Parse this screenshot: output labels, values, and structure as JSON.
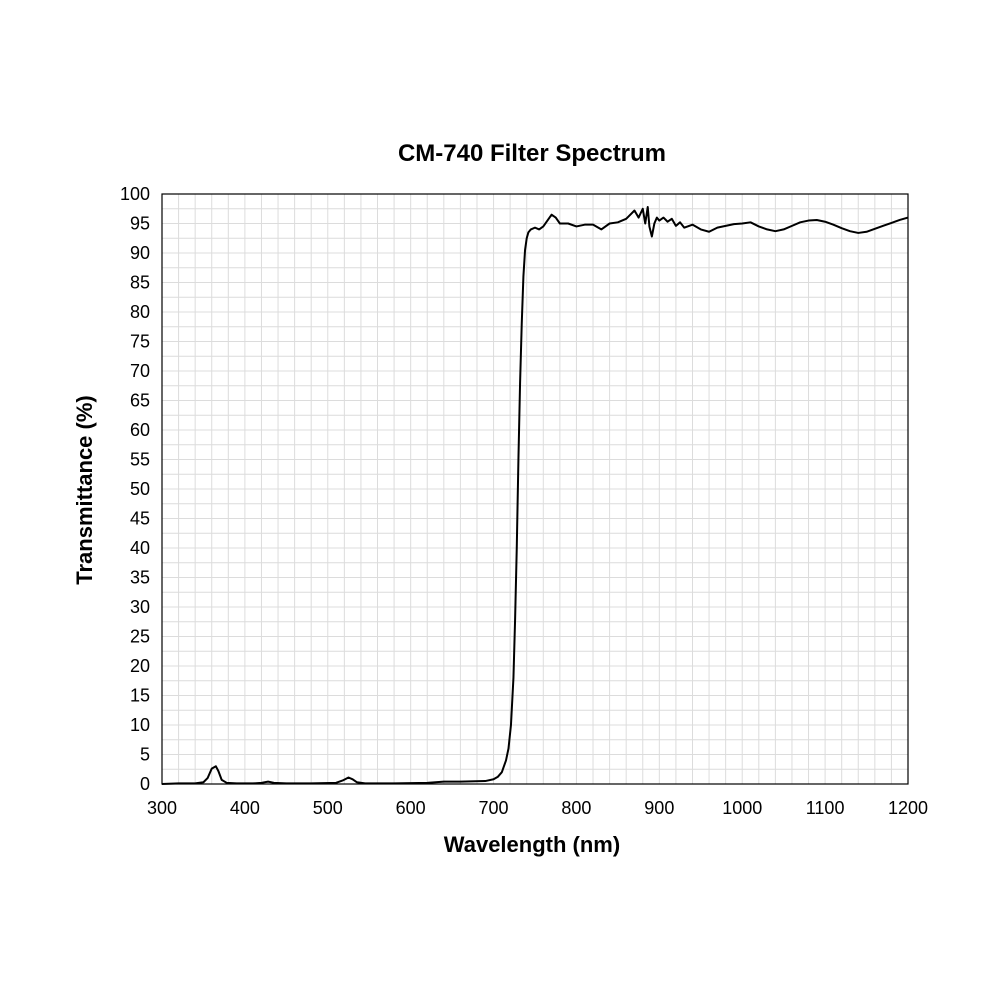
{
  "chart_data": {
    "type": "line",
    "title": "CM-740 Filter Spectrum",
    "xlabel": "Wavelength (nm)",
    "ylabel": "Transmittance (%)",
    "xlim": [
      300,
      1200
    ],
    "ylim": [
      0,
      100
    ],
    "x_ticks": [
      300,
      400,
      500,
      600,
      700,
      800,
      900,
      1000,
      1100,
      1200
    ],
    "y_ticks": [
      0,
      5,
      10,
      15,
      20,
      25,
      30,
      35,
      40,
      45,
      50,
      55,
      60,
      65,
      70,
      75,
      80,
      85,
      90,
      95,
      100
    ],
    "x_minor_step": 20,
    "y_minor_step": 2.5,
    "grid": true,
    "line_color": "#000000",
    "series": [
      {
        "points": [
          [
            300,
            0.0
          ],
          [
            320,
            0.1
          ],
          [
            340,
            0.1
          ],
          [
            350,
            0.3
          ],
          [
            355,
            1.0
          ],
          [
            360,
            2.6
          ],
          [
            365,
            3.0
          ],
          [
            368,
            2.2
          ],
          [
            372,
            0.7
          ],
          [
            378,
            0.2
          ],
          [
            390,
            0.1
          ],
          [
            410,
            0.1
          ],
          [
            420,
            0.2
          ],
          [
            428,
            0.4
          ],
          [
            435,
            0.2
          ],
          [
            450,
            0.1
          ],
          [
            480,
            0.1
          ],
          [
            510,
            0.2
          ],
          [
            518,
            0.6
          ],
          [
            525,
            1.1
          ],
          [
            530,
            0.8
          ],
          [
            535,
            0.3
          ],
          [
            545,
            0.1
          ],
          [
            580,
            0.1
          ],
          [
            620,
            0.2
          ],
          [
            640,
            0.4
          ],
          [
            660,
            0.4
          ],
          [
            690,
            0.5
          ],
          [
            700,
            0.8
          ],
          [
            705,
            1.2
          ],
          [
            710,
            2.0
          ],
          [
            715,
            4.0
          ],
          [
            718,
            6.0
          ],
          [
            721,
            10.0
          ],
          [
            724,
            18.0
          ],
          [
            726,
            28.0
          ],
          [
            728,
            40.0
          ],
          [
            730,
            55.0
          ],
          [
            732,
            68.0
          ],
          [
            734,
            78.0
          ],
          [
            736,
            86.0
          ],
          [
            738,
            90.5
          ],
          [
            740,
            92.5
          ],
          [
            742,
            93.5
          ],
          [
            745,
            94.0
          ],
          [
            750,
            94.3
          ],
          [
            755,
            94.0
          ],
          [
            760,
            94.5
          ],
          [
            765,
            95.5
          ],
          [
            770,
            96.5
          ],
          [
            775,
            96.0
          ],
          [
            780,
            95.0
          ],
          [
            790,
            95.0
          ],
          [
            800,
            94.5
          ],
          [
            810,
            94.8
          ],
          [
            820,
            94.8
          ],
          [
            830,
            94.0
          ],
          [
            840,
            95.0
          ],
          [
            850,
            95.2
          ],
          [
            860,
            95.8
          ],
          [
            865,
            96.5
          ],
          [
            870,
            97.2
          ],
          [
            875,
            96.0
          ],
          [
            880,
            97.5
          ],
          [
            883,
            95.0
          ],
          [
            886,
            97.8
          ],
          [
            888,
            94.5
          ],
          [
            891,
            92.8
          ],
          [
            894,
            95.0
          ],
          [
            897,
            96.0
          ],
          [
            900,
            95.5
          ],
          [
            905,
            96.0
          ],
          [
            910,
            95.3
          ],
          [
            915,
            95.8
          ],
          [
            920,
            94.6
          ],
          [
            925,
            95.2
          ],
          [
            930,
            94.3
          ],
          [
            940,
            94.8
          ],
          [
            950,
            94.0
          ],
          [
            960,
            93.6
          ],
          [
            970,
            94.3
          ],
          [
            980,
            94.6
          ],
          [
            990,
            94.9
          ],
          [
            1000,
            95.0
          ],
          [
            1010,
            95.2
          ],
          [
            1020,
            94.5
          ],
          [
            1030,
            94.0
          ],
          [
            1040,
            93.7
          ],
          [
            1050,
            94.0
          ],
          [
            1060,
            94.6
          ],
          [
            1070,
            95.2
          ],
          [
            1080,
            95.5
          ],
          [
            1090,
            95.6
          ],
          [
            1100,
            95.3
          ],
          [
            1110,
            94.8
          ],
          [
            1120,
            94.2
          ],
          [
            1130,
            93.7
          ],
          [
            1140,
            93.4
          ],
          [
            1150,
            93.6
          ],
          [
            1160,
            94.1
          ],
          [
            1170,
            94.6
          ],
          [
            1180,
            95.1
          ],
          [
            1190,
            95.6
          ],
          [
            1200,
            96.0
          ]
        ]
      }
    ]
  }
}
